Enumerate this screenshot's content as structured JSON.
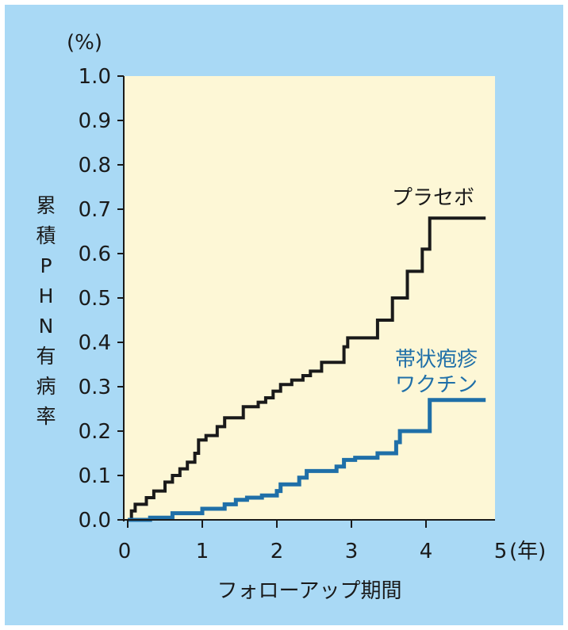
{
  "chart_data": {
    "type": "line",
    "step": true,
    "y_unit": "(%)",
    "x_unit": "(年)",
    "xlabel": "フォローアップ期間",
    "ylabel_chars": [
      "累",
      "積",
      "P",
      "H",
      "N",
      "有",
      "病",
      "率"
    ],
    "xlim": [
      0,
      5
    ],
    "ylim": [
      0,
      1.0
    ],
    "x_ticks": [
      "0",
      "1",
      "2",
      "3",
      "4",
      "5"
    ],
    "y_ticks": [
      "0.0",
      "0.1",
      "0.2",
      "0.3",
      "0.4",
      "0.5",
      "0.6",
      "0.7",
      "0.8",
      "0.9",
      "1.0"
    ],
    "grid": false,
    "colors": {
      "background": "#a9d9f5",
      "plot_area": "#fdf7d6",
      "placebo": "#1a1a1a",
      "vaccine": "#1f6fa8"
    },
    "series": [
      {
        "name": "プラセボ",
        "label_lines": [
          "プラセボ"
        ],
        "color": "#1a1a1a",
        "points": [
          [
            0,
            0
          ],
          [
            0.05,
            0.02
          ],
          [
            0.1,
            0.035
          ],
          [
            0.25,
            0.05
          ],
          [
            0.35,
            0.065
          ],
          [
            0.5,
            0.085
          ],
          [
            0.6,
            0.1
          ],
          [
            0.7,
            0.115
          ],
          [
            0.8,
            0.13
          ],
          [
            0.9,
            0.15
          ],
          [
            0.95,
            0.18
          ],
          [
            1.05,
            0.19
          ],
          [
            1.2,
            0.21
          ],
          [
            1.3,
            0.23
          ],
          [
            1.55,
            0.255
          ],
          [
            1.75,
            0.265
          ],
          [
            1.85,
            0.275
          ],
          [
            1.95,
            0.29
          ],
          [
            2.05,
            0.305
          ],
          [
            2.2,
            0.315
          ],
          [
            2.35,
            0.325
          ],
          [
            2.45,
            0.335
          ],
          [
            2.6,
            0.355
          ],
          [
            2.9,
            0.39
          ],
          [
            2.95,
            0.41
          ],
          [
            3.35,
            0.45
          ],
          [
            3.55,
            0.5
          ],
          [
            3.75,
            0.56
          ],
          [
            3.95,
            0.61
          ],
          [
            4.05,
            0.68
          ],
          [
            4.8,
            0.68
          ]
        ]
      },
      {
        "name": "帯状疱疹ワクチン",
        "label_lines": [
          "帯状疱疹",
          "ワクチン"
        ],
        "color": "#1f6fa8",
        "points": [
          [
            0,
            0
          ],
          [
            0.3,
            0.005
          ],
          [
            0.6,
            0.015
          ],
          [
            1.0,
            0.025
          ],
          [
            1.3,
            0.035
          ],
          [
            1.45,
            0.045
          ],
          [
            1.6,
            0.05
          ],
          [
            1.8,
            0.055
          ],
          [
            2.0,
            0.065
          ],
          [
            2.05,
            0.08
          ],
          [
            2.3,
            0.095
          ],
          [
            2.4,
            0.11
          ],
          [
            2.8,
            0.12
          ],
          [
            2.9,
            0.135
          ],
          [
            3.05,
            0.14
          ],
          [
            3.35,
            0.15
          ],
          [
            3.6,
            0.175
          ],
          [
            3.65,
            0.2
          ],
          [
            4.05,
            0.27
          ],
          [
            4.8,
            0.27
          ]
        ]
      }
    ]
  }
}
